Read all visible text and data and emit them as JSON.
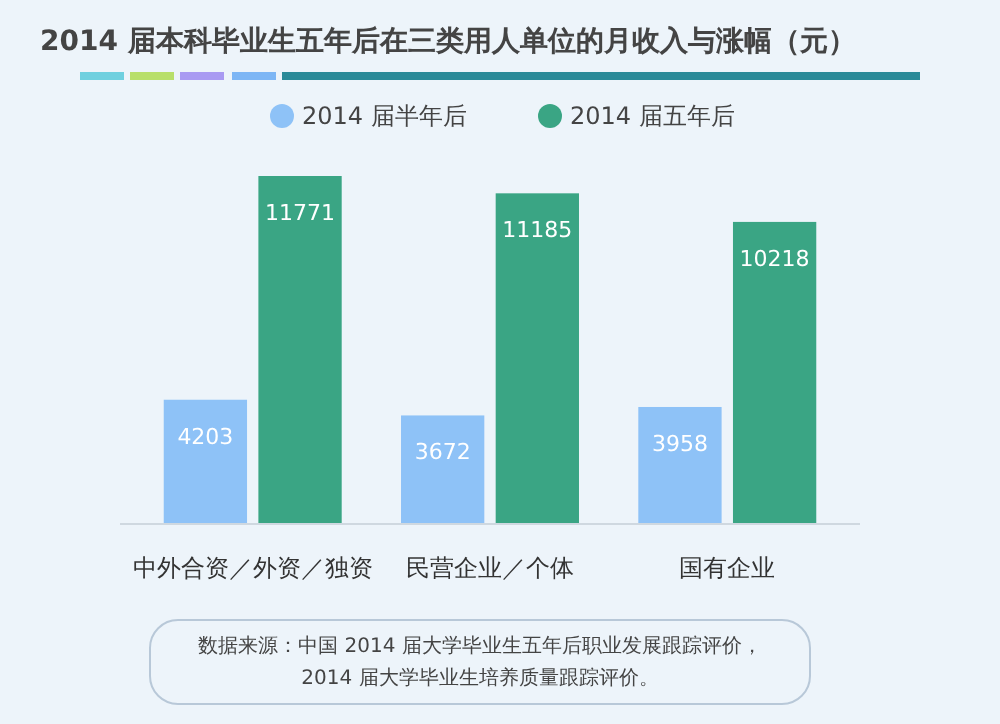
{
  "chart_data": {
    "type": "bar",
    "title": "2014 届本科毕业生五年后在三类用人单位的月收入与涨幅（元）",
    "categories": [
      "中外合资／外资／独资",
      "民营企业／个体",
      "国有企业"
    ],
    "series": [
      {
        "name": "2014 届半年后",
        "color": "#8ec2f7",
        "values": [
          4203,
          3672,
          3958
        ]
      },
      {
        "name": "2014 届五年后",
        "color": "#3aa584",
        "values": [
          11771,
          11185,
          10218
        ]
      }
    ],
    "data_labels": true,
    "legend": "top",
    "annotations": [
      "数据来源：中国 2014 届大学毕业生五年后职业发展跟踪评价，",
      "2014 届大学毕业生培养质量跟踪评价。"
    ]
  }
}
